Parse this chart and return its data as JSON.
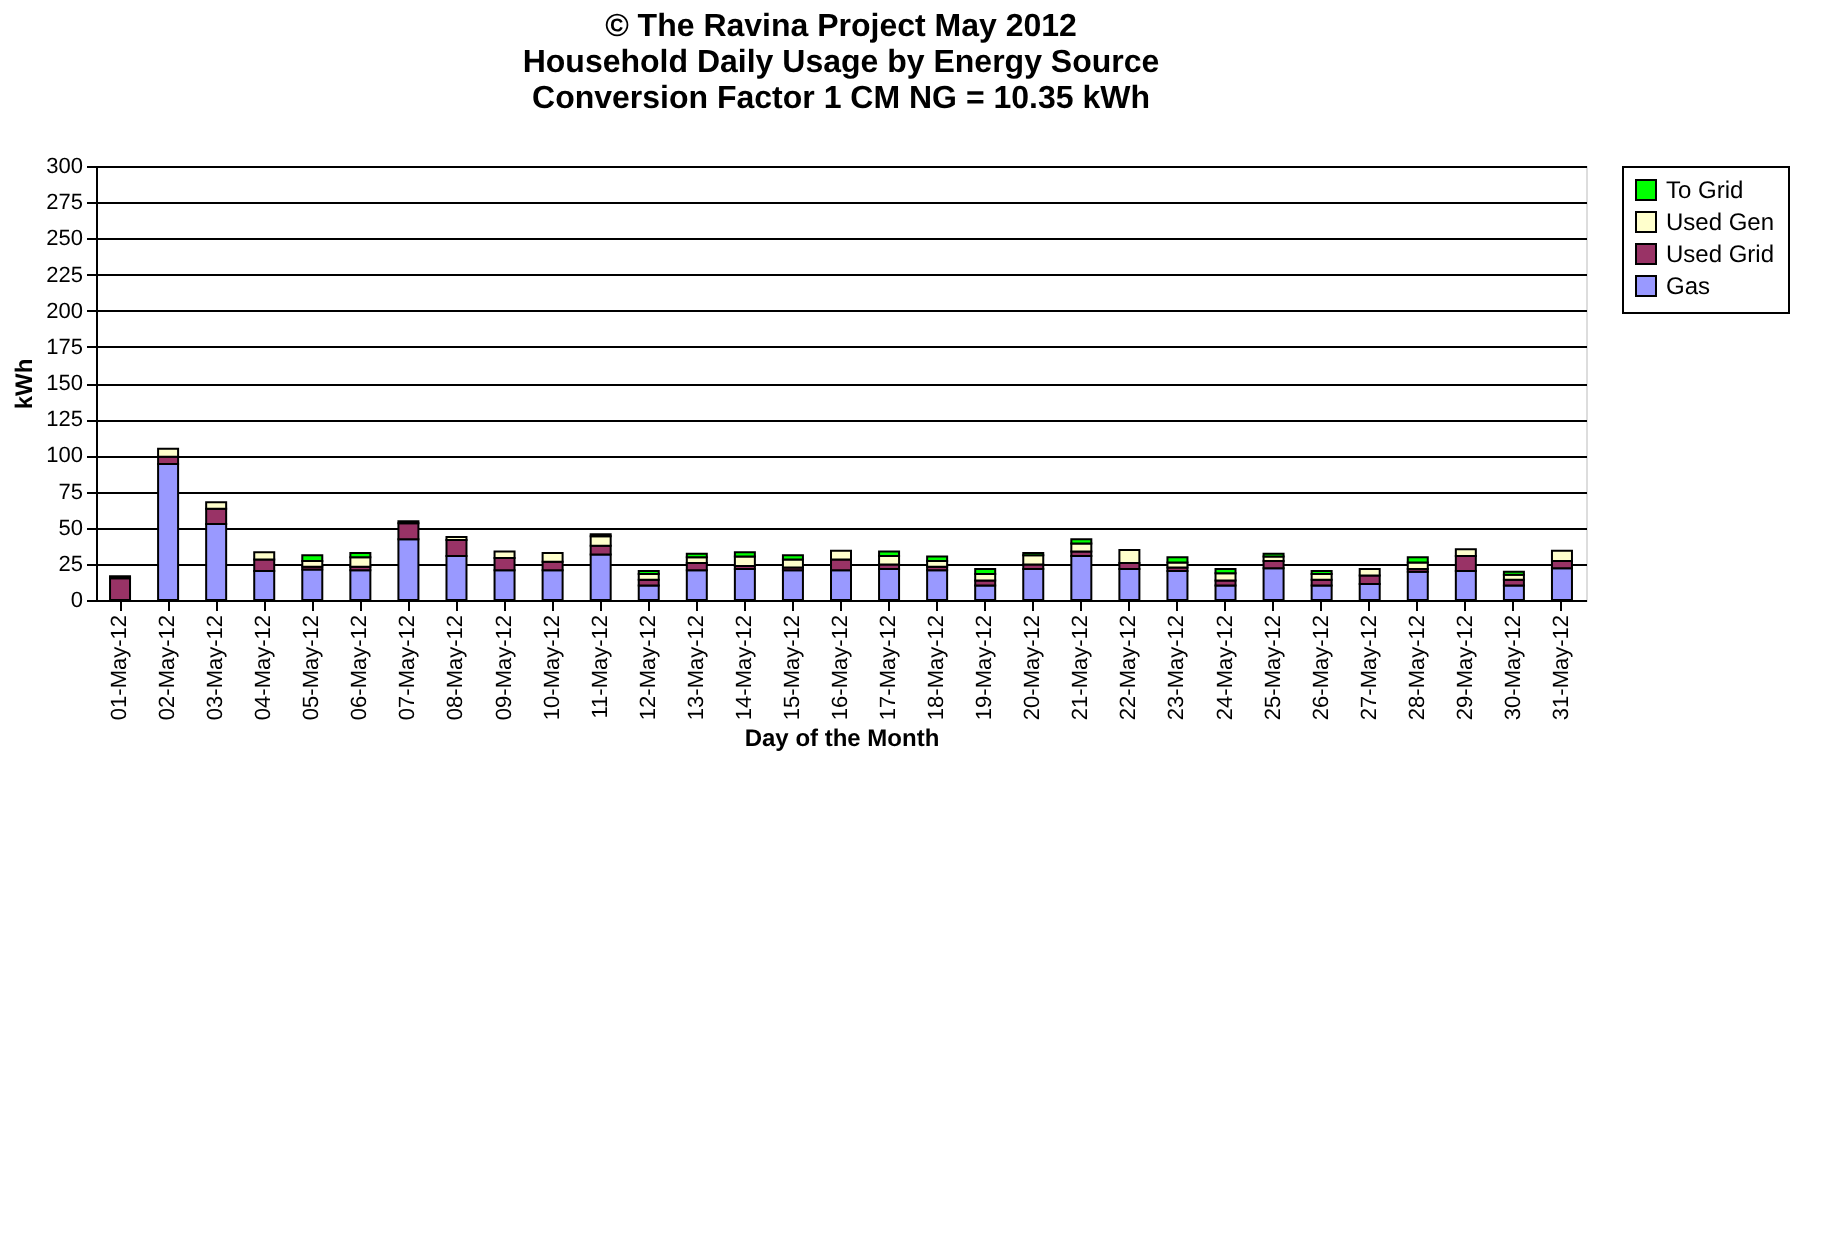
{
  "chart_data": {
    "type": "bar",
    "stacked": true,
    "title": "© The Ravina Project May 2012\nHousehold Daily Usage by Energy Source\nConversion Factor 1 CM NG = 10.35 kWh",
    "xlabel": "Day of the Month",
    "ylabel": "kWh",
    "categories": [
      "01-May-12",
      "02-May-12",
      "03-May-12",
      "04-May-12",
      "05-May-12",
      "06-May-12",
      "07-May-12",
      "08-May-12",
      "09-May-12",
      "10-May-12",
      "11-May-12",
      "12-May-12",
      "13-May-12",
      "14-May-12",
      "15-May-12",
      "16-May-12",
      "17-May-12",
      "18-May-12",
      "19-May-12",
      "20-May-12",
      "21-May-12",
      "22-May-12",
      "23-May-12",
      "24-May-12",
      "25-May-12",
      "26-May-12",
      "27-May-12",
      "28-May-12",
      "29-May-12",
      "30-May-12",
      "31-May-12"
    ],
    "series": [
      {
        "name": "Gas",
        "color": "#9999ff",
        "values": [
          null,
          94,
          52.5,
          20,
          21,
          20.5,
          42,
          30.5,
          20.5,
          20.5,
          31.5,
          10,
          20.5,
          21.5,
          20.5,
          20.5,
          21.5,
          20.5,
          10,
          21.5,
          30.5,
          21.5,
          20,
          10,
          22,
          10,
          11,
          19.5,
          20,
          10,
          22
        ]
      },
      {
        "name": "Used Grid",
        "color": "#993366",
        "values": [
          15,
          5,
          10.5,
          8,
          2,
          2.5,
          11,
          11,
          8.5,
          6,
          6,
          4,
          5,
          2,
          2,
          7.5,
          3,
          2.5,
          3.5,
          3,
          3,
          4,
          2.5,
          3.5,
          5,
          4,
          6,
          2,
          10.5,
          4,
          5
        ]
      },
      {
        "name": "Used Gen",
        "color": "#ffffcc",
        "values": [
          1.5,
          5.5,
          4.5,
          5,
          4,
          6.5,
          1.5,
          2,
          4.5,
          6,
          6.5,
          4,
          4,
          6.5,
          5.5,
          6,
          6,
          4,
          4.5,
          6.5,
          5.5,
          9,
          3.5,
          5,
          3,
          4,
          4.5,
          4.5,
          4.5,
          3.5,
          7
        ]
      },
      {
        "name": "To Grid",
        "color": "#00ff00",
        "values": [
          null,
          null,
          null,
          null,
          4,
          3,
          null,
          null,
          null,
          null,
          1.5,
          2,
          2.5,
          3,
          3,
          null,
          3,
          3,
          3.5,
          1.5,
          3,
          null,
          3.5,
          3,
          2,
          2,
          null,
          3.5,
          null,
          2,
          null
        ]
      }
    ],
    "ylim": [
      0,
      300
    ],
    "yticks": [
      0,
      25,
      50,
      75,
      100,
      125,
      150,
      175,
      200,
      225,
      250,
      275,
      300
    ],
    "grid": "y",
    "legend": "right"
  }
}
